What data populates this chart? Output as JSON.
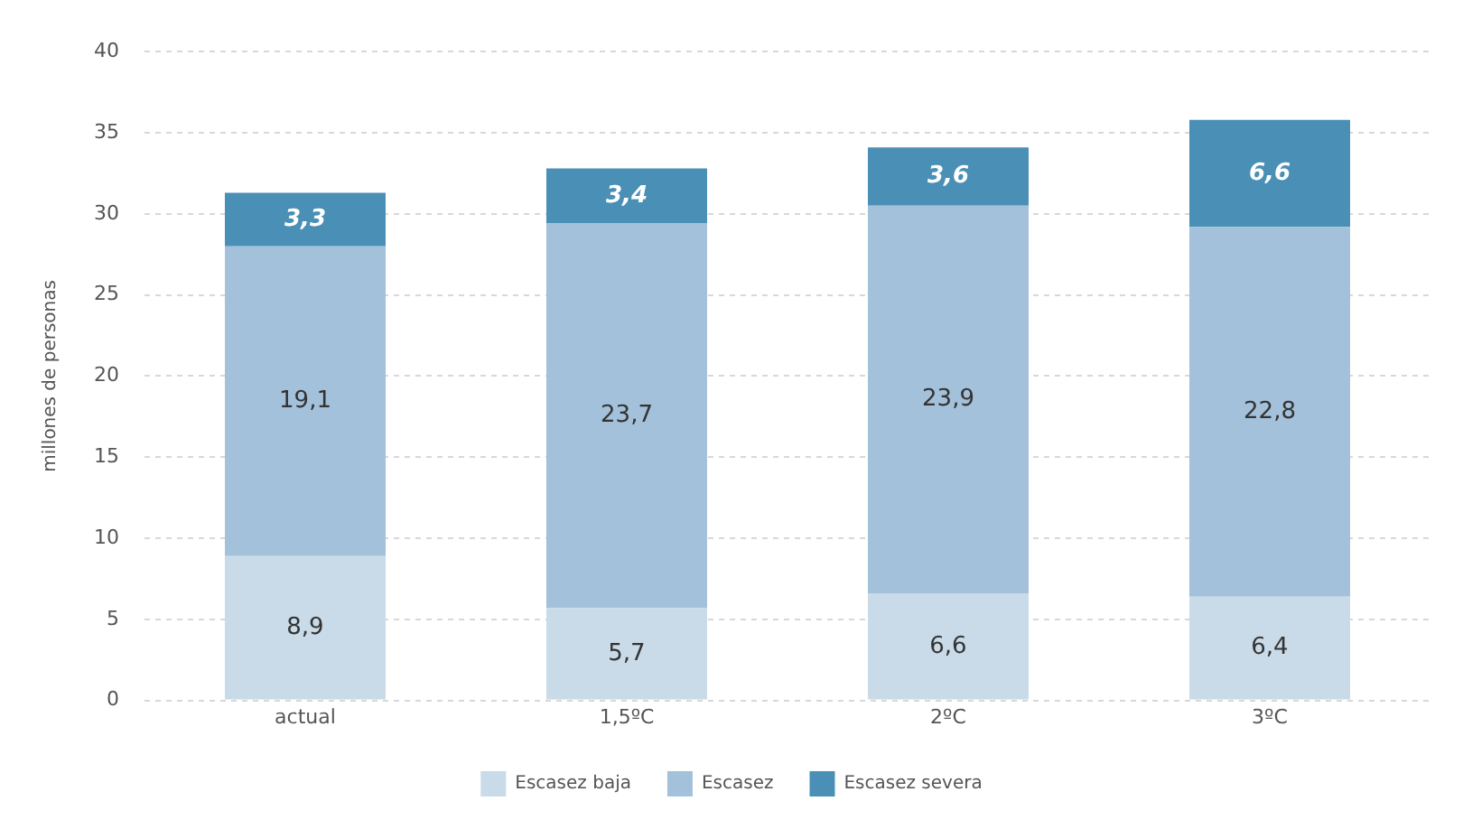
{
  "chart_data": {
    "type": "bar",
    "stacked": true,
    "ylabel": "millones de personas",
    "categories": [
      "actual",
      "1,5ºC",
      "2ºC",
      "3ºC"
    ],
    "series": [
      {
        "name": "Escasez baja",
        "color": "#c9dbe8",
        "values": [
          8.9,
          5.7,
          6.6,
          6.4
        ],
        "value_labels": [
          "8,9",
          "5,7",
          "6,6",
          "6,4"
        ]
      },
      {
        "name": "Escasez",
        "color": "#a3c1da",
        "values": [
          19.1,
          23.7,
          23.9,
          22.8
        ],
        "value_labels": [
          "19,1",
          "23,7",
          "23,9",
          "22,8"
        ]
      },
      {
        "name": "Escasez severa",
        "color": "#4a8fb5",
        "values": [
          3.3,
          3.4,
          3.6,
          6.6
        ],
        "value_labels": [
          "3,3",
          "3,4",
          "3,6",
          "6,6"
        ]
      }
    ],
    "ylim": [
      0,
      40
    ],
    "yticks": [
      0,
      5,
      10,
      15,
      20,
      25,
      30,
      35,
      40
    ],
    "grid": "y",
    "legend": "bottom"
  }
}
